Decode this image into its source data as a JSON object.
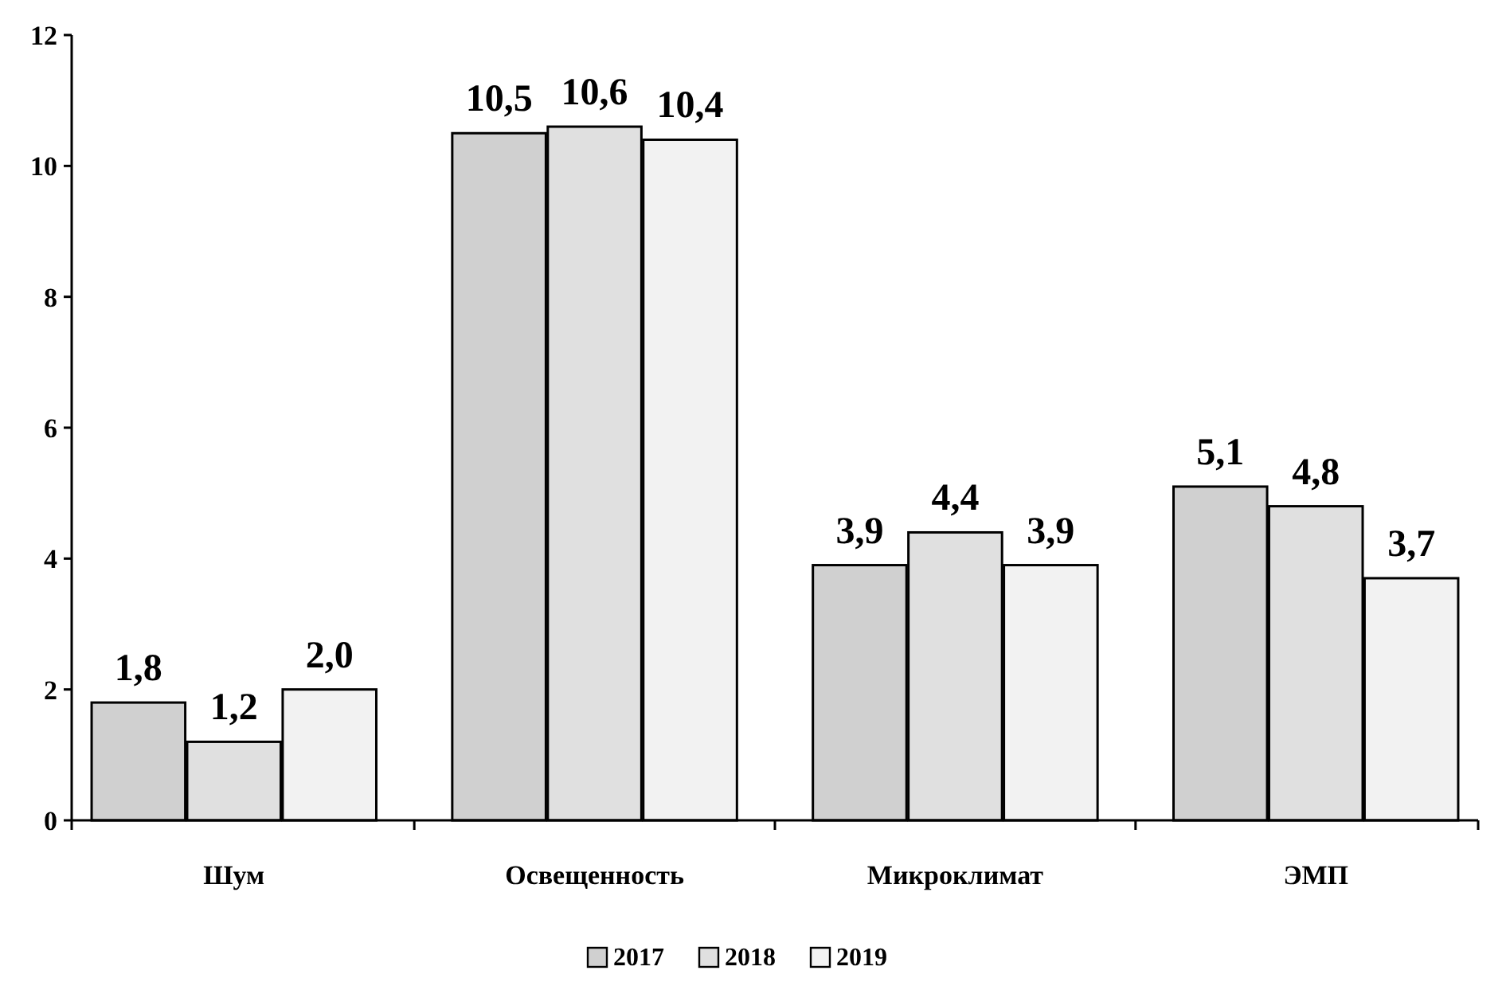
{
  "chart_data": {
    "type": "bar",
    "categories": [
      "Шум",
      "Освещенность",
      "Микроклимат",
      "ЭМП"
    ],
    "series": [
      {
        "name": "2017",
        "color": "#d0d0d0",
        "values": [
          1.8,
          10.5,
          3.9,
          5.1
        ],
        "value_labels": [
          "1,8",
          "10,5",
          "3,9",
          "5,1"
        ]
      },
      {
        "name": "2018",
        "color": "#e0e0e0",
        "values": [
          1.2,
          10.6,
          4.4,
          4.8
        ],
        "value_labels": [
          "1,2",
          "10,6",
          "4,4",
          "4,8"
        ]
      },
      {
        "name": "2019",
        "color": "#f2f2f2",
        "values": [
          2.0,
          10.4,
          3.9,
          3.7
        ],
        "value_labels": [
          "2,0",
          "10,4",
          "3,9",
          "3,7"
        ]
      }
    ],
    "ylim": [
      0,
      12
    ],
    "yticks": [
      0,
      2,
      4,
      6,
      8,
      10,
      12
    ],
    "grid": false,
    "legend": "bottom"
  }
}
